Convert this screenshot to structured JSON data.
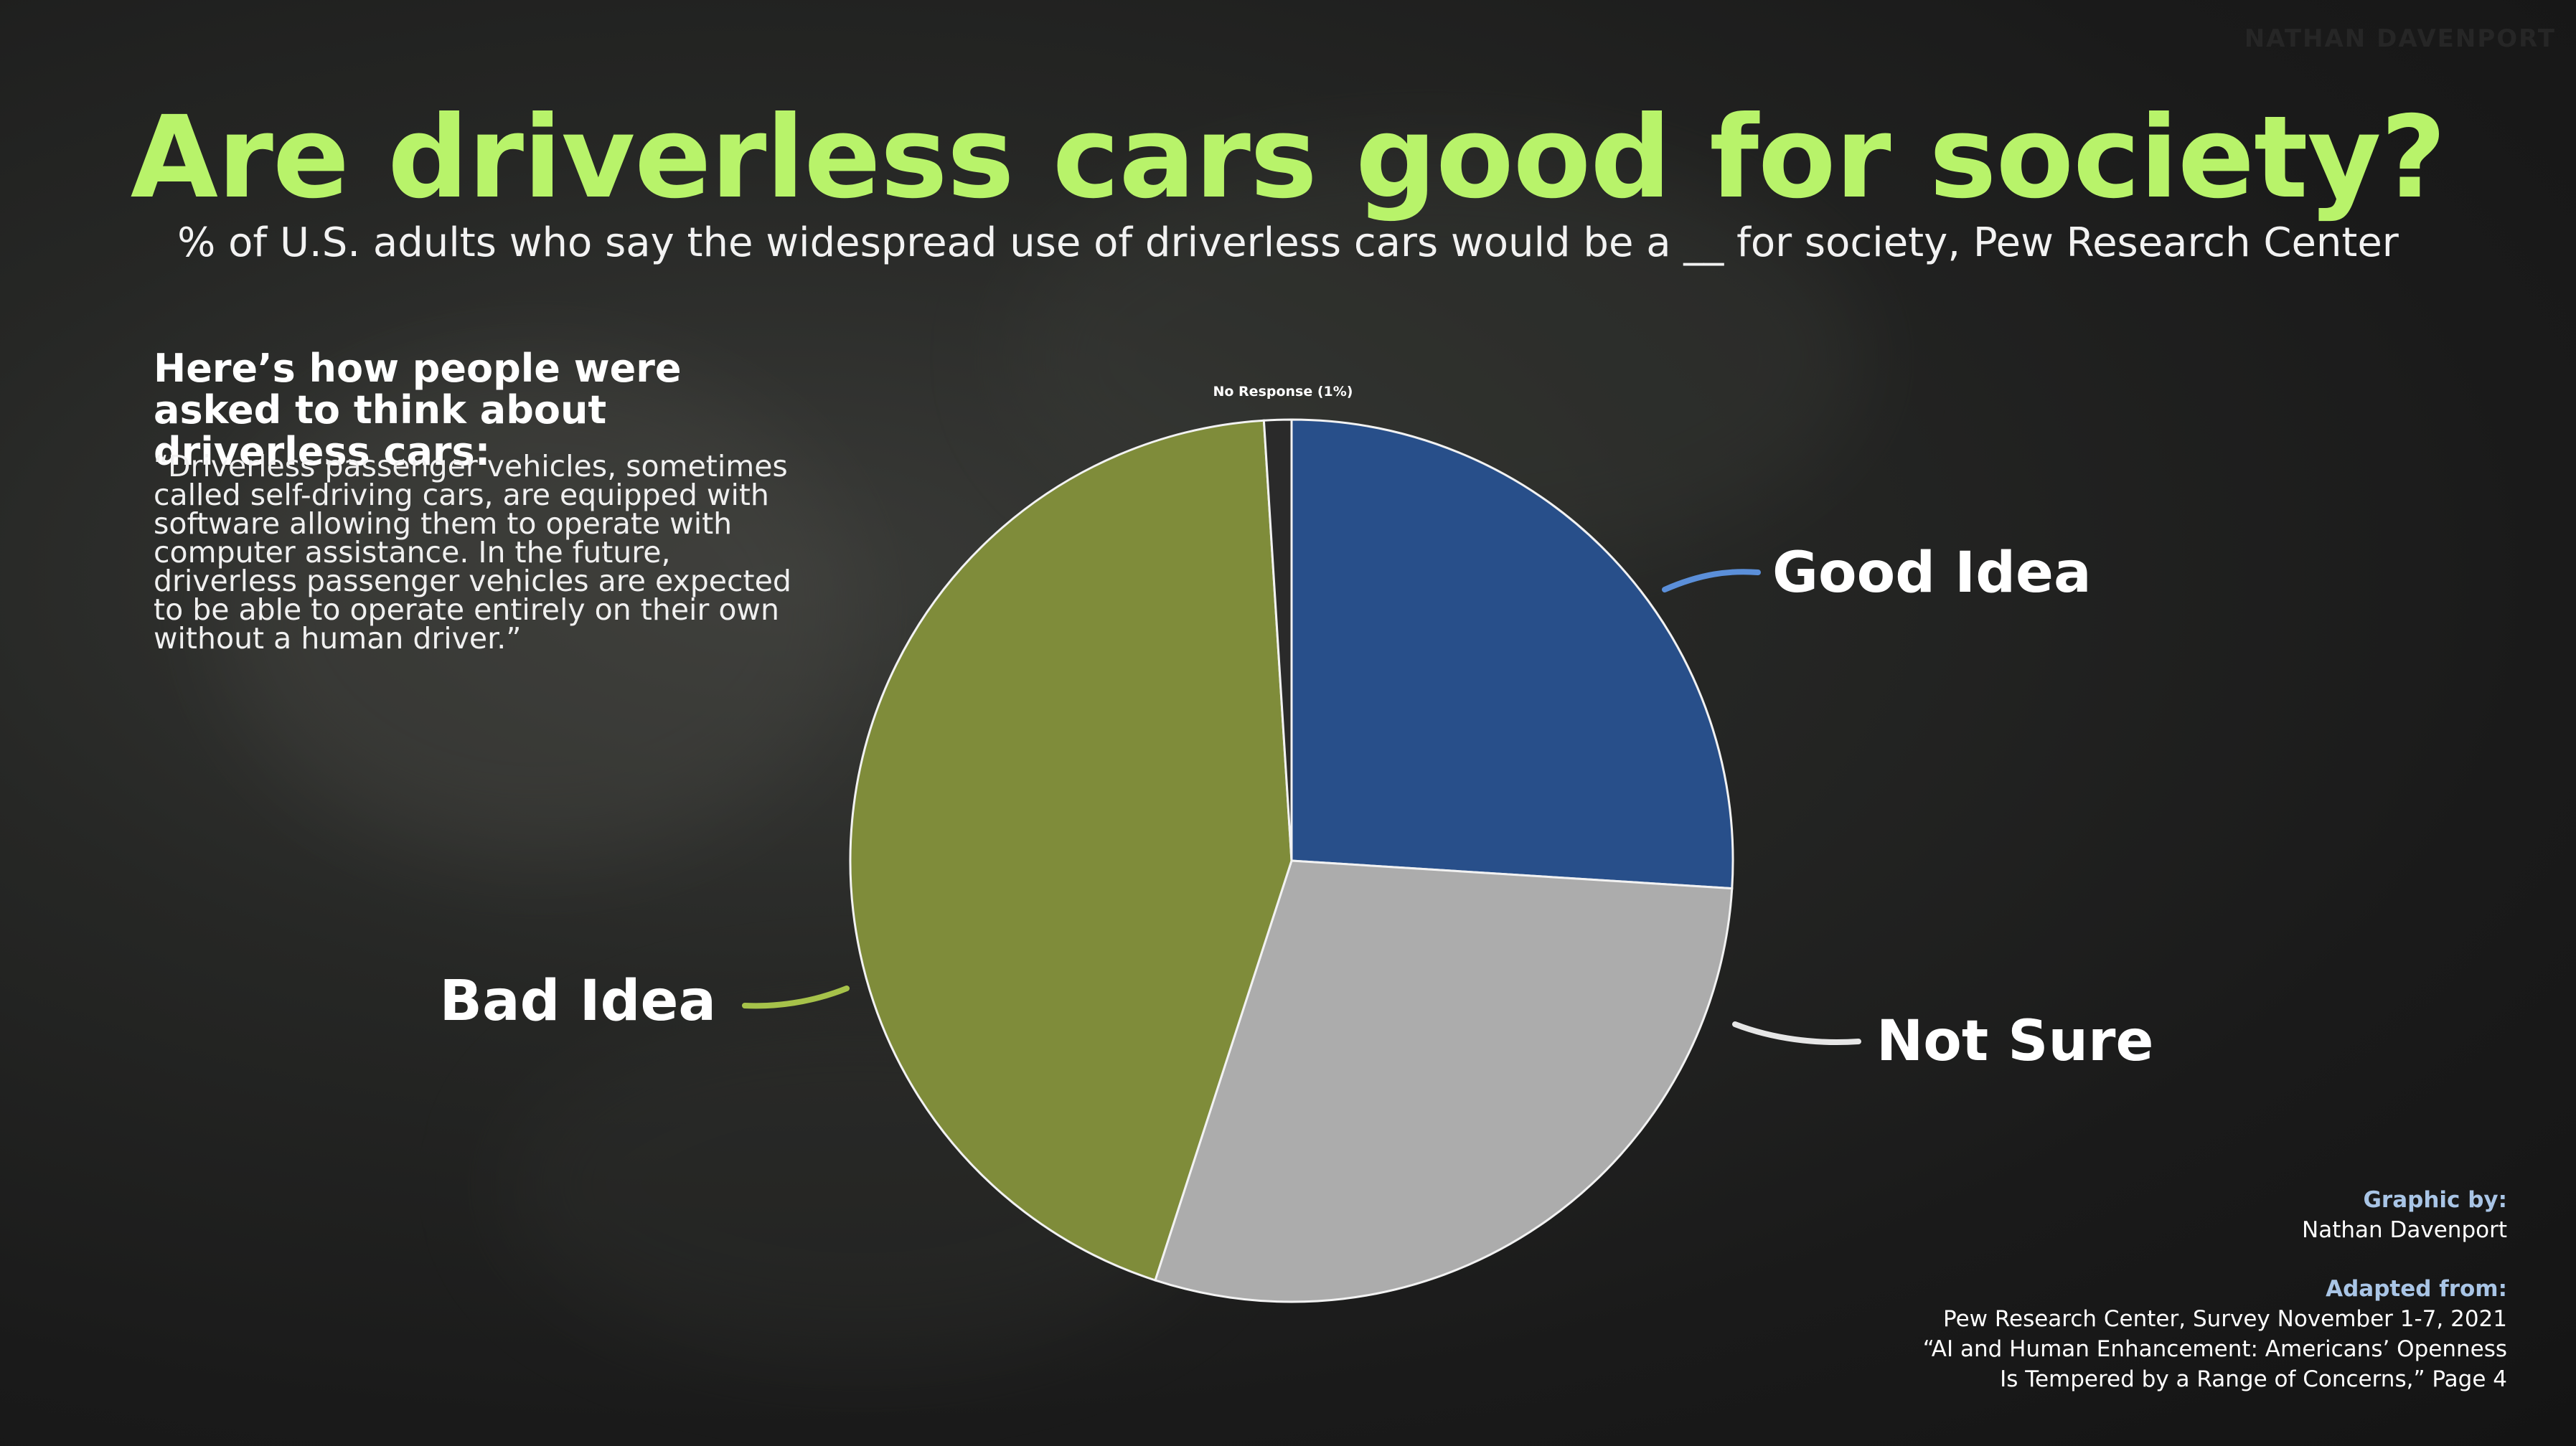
{
  "watermark": "NATHAN DAVENPORT",
  "chart_data": {
    "type": "pie",
    "title": "Are driverless cars good for society?",
    "subtitle": "% of U.S. adults who say the widespread use of driverless cars would be a __ for society, Pew Research Center",
    "slices": [
      {
        "label": "Good Idea",
        "value": 26,
        "color": "#284f8a",
        "leader_color": "#5b8fd9"
      },
      {
        "label": "Not Sure",
        "value": 29,
        "color": "#acacac",
        "leader_color": "#e6e6e6"
      },
      {
        "label": "Bad Idea",
        "value": 44,
        "color": "#7f8c3a",
        "leader_color": "#a6c24a"
      },
      {
        "label": "No Response (1%)",
        "value": 1,
        "color": "#2a2a2a",
        "leader_color": "#ffffff"
      }
    ],
    "start_angle_deg": 0,
    "direction": "clockwise",
    "legend": "none"
  },
  "explainer": {
    "heading": "Here’s how people were asked to think about driverless cars:",
    "quote": "“Driverless passenger vehicles, sometimes called self-driving cars, are equipped with software allowing them to operate with computer assistance. In the future, driverless passenger vehicles are expected to be able to operate entirely on their own without a human driver.”"
  },
  "credits": {
    "graphic_by_label": "Graphic by:",
    "graphic_by_name": "Nathan Davenport",
    "adapted_label": "Adapted from:",
    "source_line1": "Pew Research Center, Survey November 1-7, 2021",
    "source_line2": "“AI and Human Enhancement: Americans’ Openness",
    "source_line3": "Is Tempered by a Range of Concerns,” Page 4"
  },
  "colors": {
    "title": "#b8f36a",
    "background": "#1c1c1c",
    "credit_heading": "#a9c5e6"
  }
}
